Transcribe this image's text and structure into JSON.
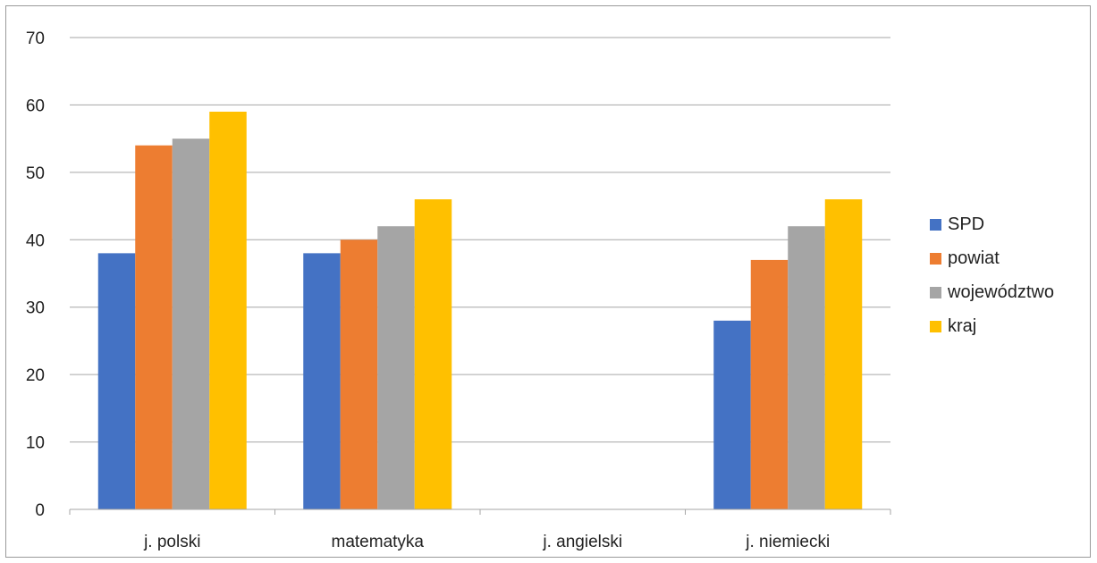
{
  "chart_data": {
    "type": "bar",
    "categories": [
      "j. polski",
      "matematyka",
      "j. angielski",
      "j. niemiecki"
    ],
    "series": [
      {
        "name": "SPD",
        "values": [
          38,
          38,
          null,
          28
        ],
        "color": "#4472C4"
      },
      {
        "name": "powiat",
        "values": [
          54,
          40,
          null,
          37
        ],
        "color": "#ED7D31"
      },
      {
        "name": "województwo",
        "values": [
          55,
          42,
          null,
          42
        ],
        "color": "#A5A5A5"
      },
      {
        "name": "kraj",
        "values": [
          59,
          46,
          null,
          46
        ],
        "color": "#FFC000"
      }
    ],
    "ylim": [
      0,
      70
    ],
    "yticks": [
      0,
      10,
      20,
      30,
      40,
      50,
      60,
      70
    ],
    "grid": true,
    "legend": "right"
  }
}
